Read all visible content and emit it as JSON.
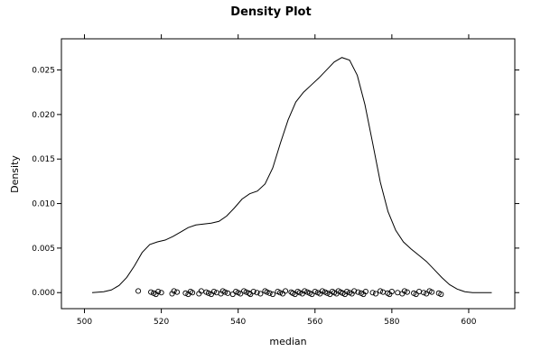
{
  "chart_data": {
    "type": "line",
    "title": "Density Plot",
    "xlabel": "median",
    "ylabel": "Density",
    "xlim": [
      494,
      612
    ],
    "ylim": [
      -0.0018,
      0.0285
    ],
    "x_ticks": [
      500,
      520,
      540,
      560,
      580,
      600
    ],
    "y_ticks": [
      0.0,
      0.005,
      0.01,
      0.015,
      0.02,
      0.025
    ],
    "x_tick_labels": [
      "500",
      "520",
      "540",
      "560",
      "580",
      "600"
    ],
    "y_tick_labels": [
      "0.000",
      "0.005",
      "0.010",
      "0.015",
      "0.020",
      "0.025"
    ],
    "grid": false,
    "series": [
      {
        "x": [
          502,
          505,
          507,
          509,
          511,
          513,
          515,
          517,
          519,
          521,
          523,
          525,
          527,
          529,
          531,
          533,
          535,
          537,
          539,
          541,
          543,
          545,
          547,
          549,
          551,
          553,
          555,
          557,
          559,
          561,
          563,
          565,
          567,
          569,
          571,
          573,
          575,
          577,
          579,
          581,
          583,
          585,
          587,
          589,
          591,
          593,
          595,
          597,
          599,
          601,
          603,
          606
        ],
        "y": [
          0.0,
          0.0001,
          0.0003,
          0.0008,
          0.0017,
          0.003,
          0.0045,
          0.0054,
          0.0057,
          0.0059,
          0.0063,
          0.0068,
          0.0073,
          0.0076,
          0.0077,
          0.0078,
          0.008,
          0.0086,
          0.0095,
          0.0105,
          0.0111,
          0.0114,
          0.0122,
          0.014,
          0.0168,
          0.0194,
          0.0214,
          0.0225,
          0.0233,
          0.0241,
          0.025,
          0.0259,
          0.0264,
          0.0261,
          0.0244,
          0.0211,
          0.0168,
          0.0124,
          0.0091,
          0.007,
          0.0057,
          0.0049,
          0.0042,
          0.0035,
          0.0026,
          0.0017,
          0.0009,
          0.0004,
          0.0001,
          0.0,
          0.0,
          0.0
        ]
      }
    ],
    "rug_points": [
      514.0,
      517.3,
      518.0,
      518.6,
      519.2,
      520.0,
      522.8,
      523.3,
      524.1,
      526.3,
      527.0,
      527.6,
      528.1,
      529.8,
      530.4,
      531.7,
      532.3,
      533.0,
      533.7,
      534.4,
      535.5,
      536.0,
      536.6,
      537.3,
      538.6,
      539.4,
      540.0,
      540.6,
      541.5,
      542.1,
      542.8,
      543.2,
      544.0,
      544.9,
      545.8,
      547.0,
      547.5,
      548.2,
      549.0,
      550.3,
      550.9,
      551.6,
      552.3,
      553.8,
      554.2,
      554.8,
      555.5,
      556.0,
      556.7,
      557.3,
      558.0,
      558.6,
      559.2,
      560.0,
      560.7,
      561.3,
      561.9,
      562.6,
      563.2,
      563.9,
      564.5,
      565.0,
      565.6,
      566.1,
      566.7,
      567.2,
      567.8,
      568.3,
      569.0,
      569.6,
      570.2,
      571.2,
      572.0,
      572.6,
      573.2,
      575.0,
      575.8,
      577.0,
      577.7,
      578.9,
      579.4,
      580.0,
      581.5,
      582.7,
      583.3,
      584.0,
      585.7,
      586.3,
      587.1,
      588.3,
      589.0,
      589.8,
      590.4,
      592.2,
      592.8
    ]
  }
}
